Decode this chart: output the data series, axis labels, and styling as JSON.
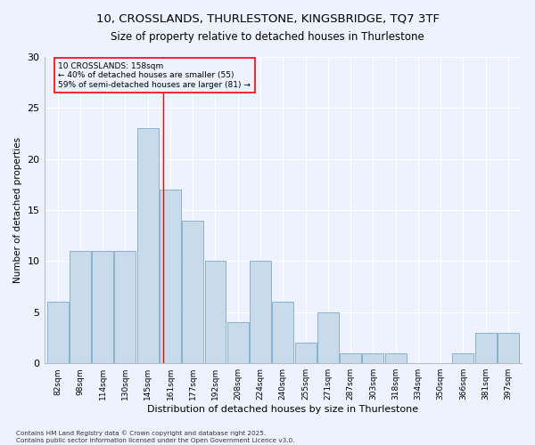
{
  "title_line1": "10, CROSSLANDS, THURLESTONE, KINGSBRIDGE, TQ7 3TF",
  "title_line2": "Size of property relative to detached houses in Thurlestone",
  "xlabel": "Distribution of detached houses by size in Thurlestone",
  "ylabel": "Number of detached properties",
  "bar_color": "#c9daea",
  "bar_edge_color": "#7aaac8",
  "categories": [
    "82sqm",
    "98sqm",
    "114sqm",
    "130sqm",
    "145sqm",
    "161sqm",
    "177sqm",
    "192sqm",
    "208sqm",
    "224sqm",
    "240sqm",
    "255sqm",
    "271sqm",
    "287sqm",
    "303sqm",
    "318sqm",
    "334sqm",
    "350sqm",
    "366sqm",
    "381sqm",
    "397sqm"
  ],
  "values": [
    6,
    11,
    11,
    11,
    23,
    17,
    14,
    10,
    4,
    10,
    6,
    2,
    5,
    1,
    1,
    1,
    0,
    0,
    1,
    3,
    3
  ],
  "ylim": [
    0,
    30
  ],
  "yticks": [
    0,
    5,
    10,
    15,
    20,
    25,
    30
  ],
  "annotation_title": "10 CROSSLANDS: 158sqm",
  "annotation_line2": "← 40% of detached houses are smaller (55)",
  "annotation_line3": "59% of semi-detached houses are larger (81) →",
  "vline_x_index": 4.7,
  "background_color": "#eef2ff",
  "grid_color": "#ffffff",
  "footer_line1": "Contains HM Land Registry data © Crown copyright and database right 2025.",
  "footer_line2": "Contains public sector information licensed under the Open Government Licence v3.0."
}
